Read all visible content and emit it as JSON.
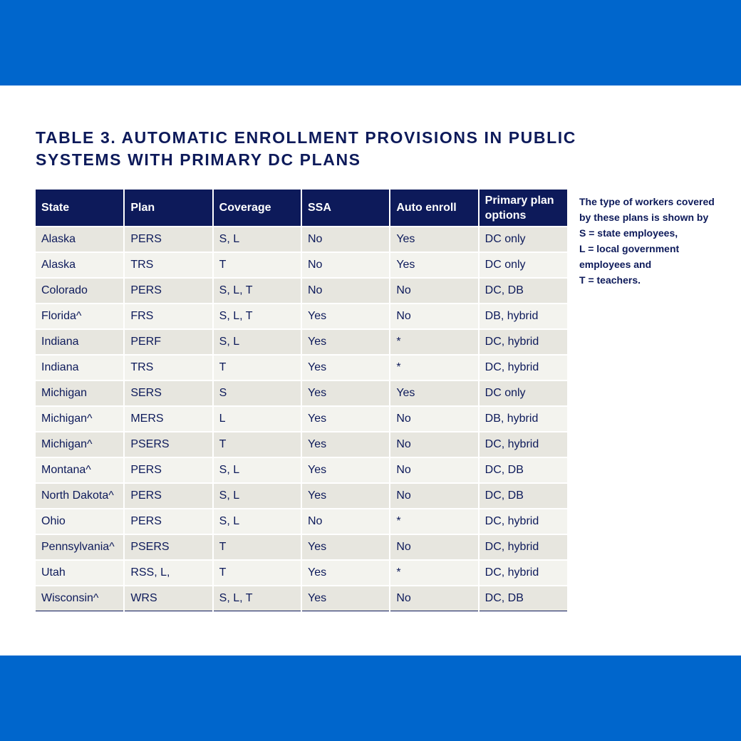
{
  "title": {
    "line1": "TABLE 3. AUTOMATIC ENROLLMENT PROVISIONS IN PUBLIC",
    "line2": "SYSTEMS WITH PRIMARY DC PLANS"
  },
  "table": {
    "headers": [
      "State",
      "Plan",
      "Coverage",
      "SSA",
      "Auto enroll",
      "Primary plan options"
    ],
    "rows": [
      [
        "Alaska",
        "PERS",
        "S, L",
        "No",
        "Yes",
        "DC only"
      ],
      [
        "Alaska",
        "TRS",
        "T",
        "No",
        "Yes",
        "DC only"
      ],
      [
        "Colorado",
        "PERS",
        "S, L, T",
        "No",
        "No",
        "DC, DB"
      ],
      [
        "Florida^",
        "FRS",
        "S, L, T",
        "Yes",
        "No",
        "DB, hybrid"
      ],
      [
        "Indiana",
        "PERF",
        "S, L",
        "Yes",
        "*",
        "DC, hybrid"
      ],
      [
        "Indiana",
        "TRS",
        "T",
        "Yes",
        "*",
        "DC, hybrid"
      ],
      [
        "Michigan",
        "SERS",
        "S",
        "Yes",
        "Yes",
        "DC only"
      ],
      [
        "Michigan^",
        "MERS",
        "L",
        "Yes",
        "No",
        "DB, hybrid"
      ],
      [
        "Michigan^",
        "PSERS",
        "T",
        "Yes",
        "No",
        "DC, hybrid"
      ],
      [
        "Montana^",
        "PERS",
        "S, L",
        "Yes",
        "No",
        "DC, DB"
      ],
      [
        "North Dakota^",
        "PERS",
        "S, L",
        "Yes",
        "No",
        "DC, DB"
      ],
      [
        "Ohio",
        "PERS",
        "S, L",
        "No",
        "*",
        "DC, hybrid"
      ],
      [
        "Pennsylvania^",
        "PSERS",
        "T",
        "Yes",
        "No",
        "DC, hybrid"
      ],
      [
        "Utah",
        "RSS, L,",
        "T",
        "Yes",
        "*",
        "DC, hybrid"
      ],
      [
        "Wisconsin^",
        "WRS",
        "S, L, T",
        "Yes",
        "No",
        "DC, DB"
      ]
    ]
  },
  "note": {
    "lines": [
      "The type of workers covered",
      "by these plans is shown by",
      "S = state employees,",
      "L = local government",
      "employees and",
      "T = teachers."
    ]
  },
  "colors": {
    "band": "#0066cc",
    "navy": "#0d1a5a",
    "row_odd": "#e7e6df",
    "row_even": "#f3f3ee"
  }
}
